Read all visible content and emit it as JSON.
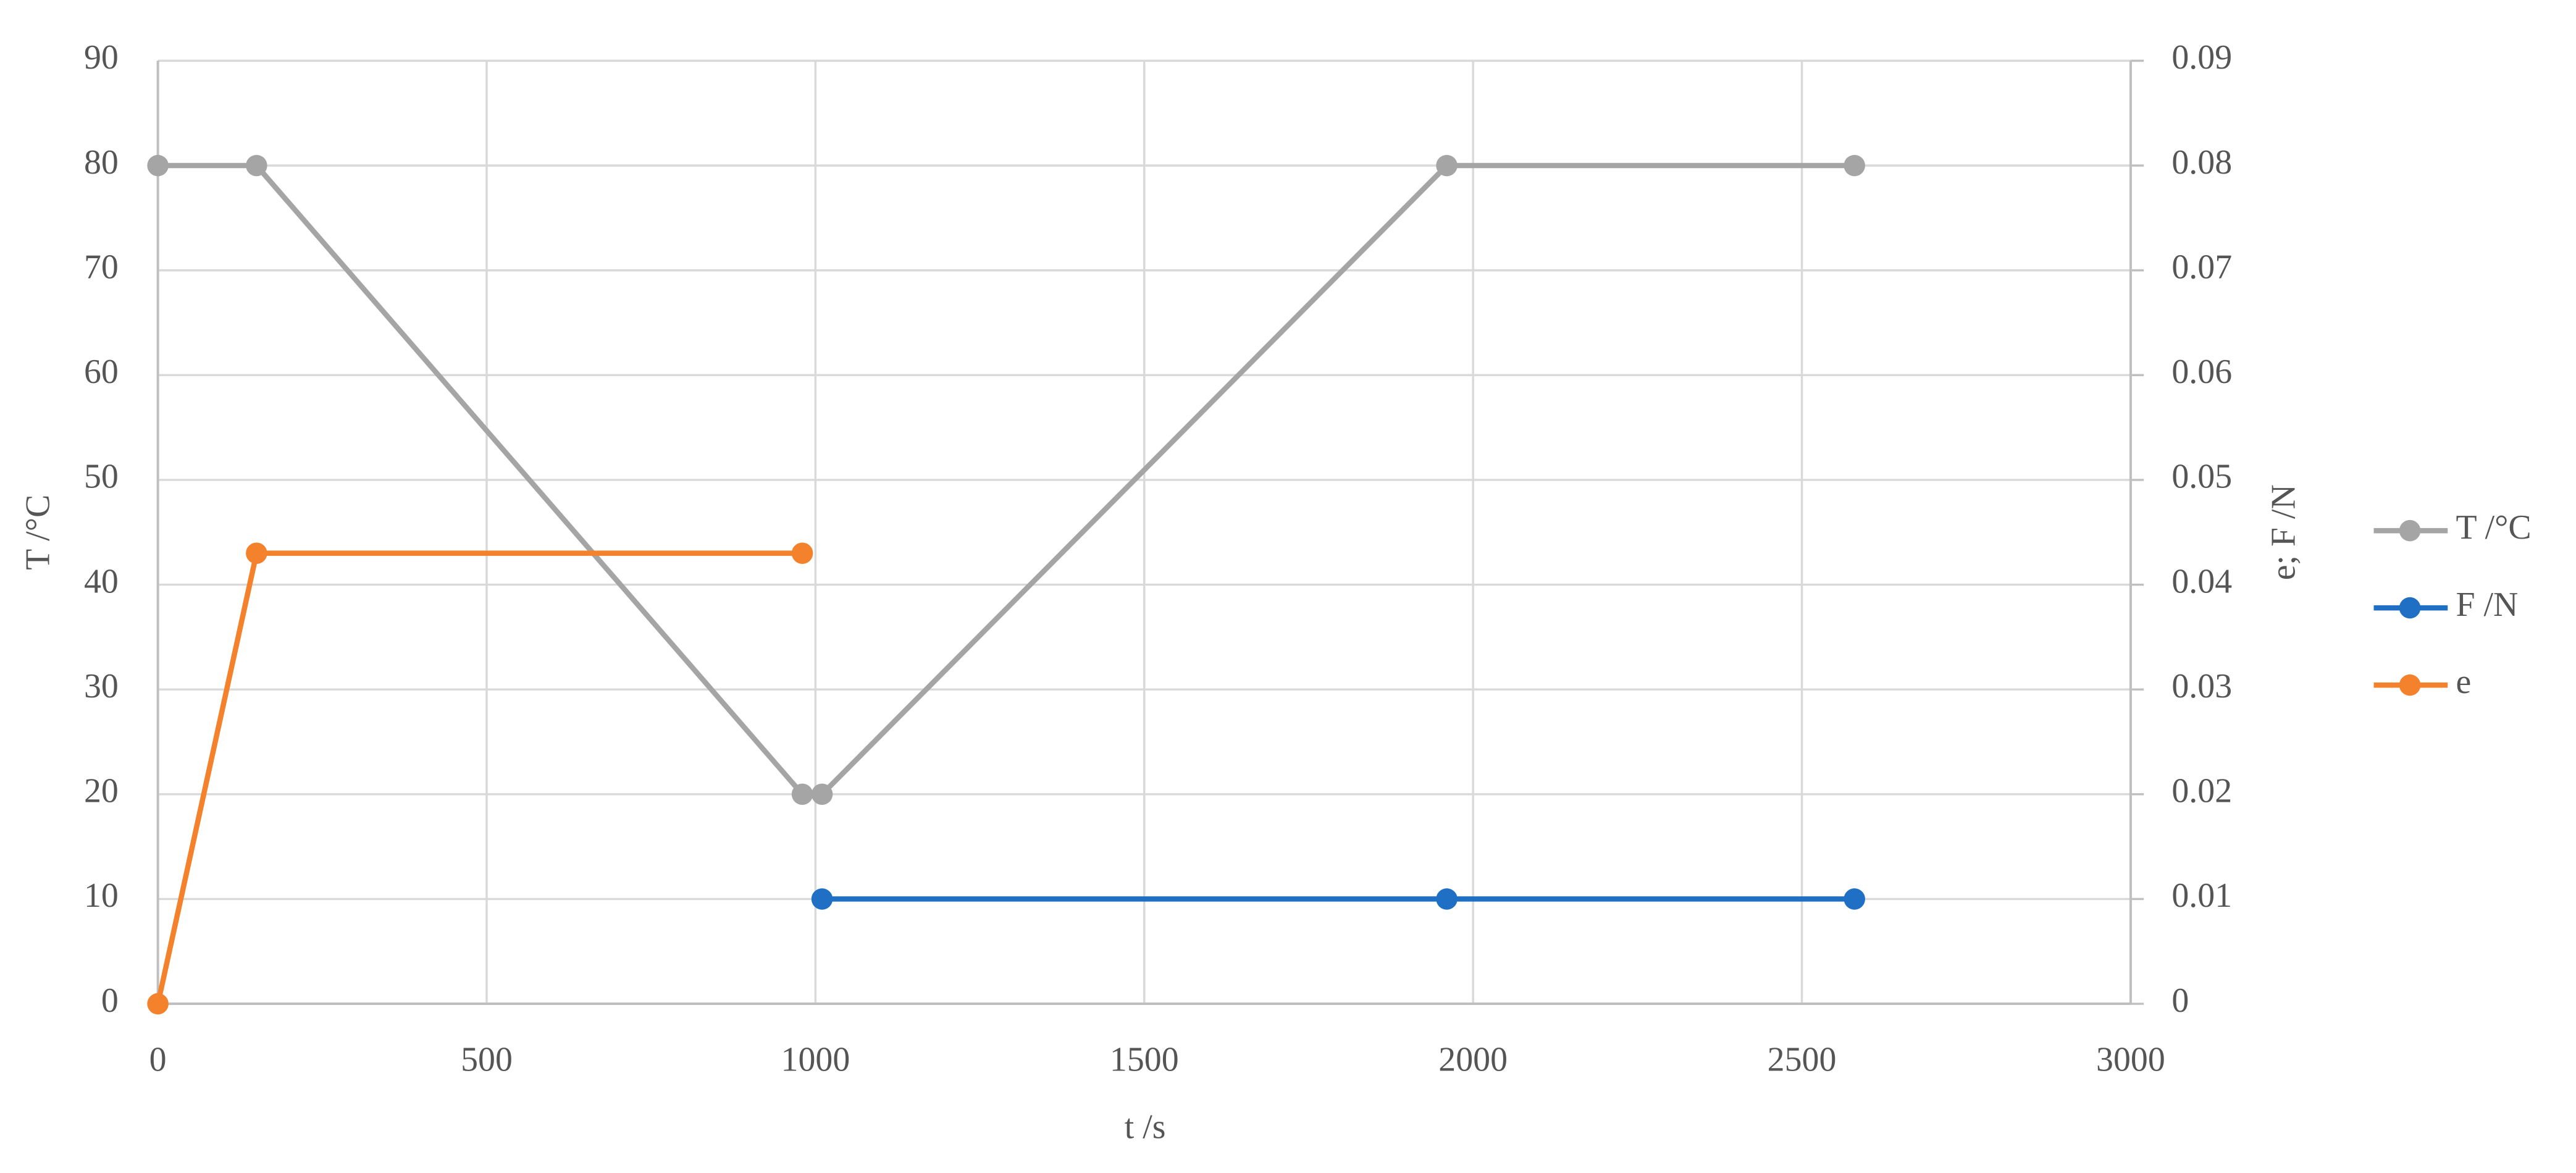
{
  "chart_data": {
    "type": "line",
    "xlabel": "t /s",
    "ylabel": "T /°C",
    "y2label": "e; F /N",
    "xlim": [
      0,
      3000
    ],
    "xticks": [
      0,
      500,
      1000,
      1500,
      2000,
      2500,
      3000
    ],
    "ylim": [
      0,
      90
    ],
    "yticks": [
      0,
      10,
      20,
      30,
      40,
      50,
      60,
      70,
      80,
      90
    ],
    "y2lim": [
      0,
      0.09
    ],
    "y2ticks": [
      0,
      0.01,
      0.02,
      0.03,
      0.04,
      0.05,
      0.06,
      0.07,
      0.08,
      0.09
    ],
    "grid": true,
    "legend": "right",
    "series": [
      {
        "name": "T /°C",
        "color": "#a5a5a5",
        "x": [
          0,
          150,
          980,
          1010,
          1960,
          2580
        ],
        "values": [
          80,
          80,
          20,
          20,
          80,
          80
        ]
      },
      {
        "name": "F /N",
        "color": "#1f6fc5",
        "axis": "y2",
        "x": [
          1010,
          1960,
          2580
        ],
        "values": [
          0.01,
          0.01,
          0.01
        ]
      },
      {
        "name": "e",
        "color": "#f4812b",
        "axis": "y2",
        "x": [
          0,
          150,
          980
        ],
        "values": [
          0,
          0.043,
          0.043
        ]
      }
    ]
  }
}
